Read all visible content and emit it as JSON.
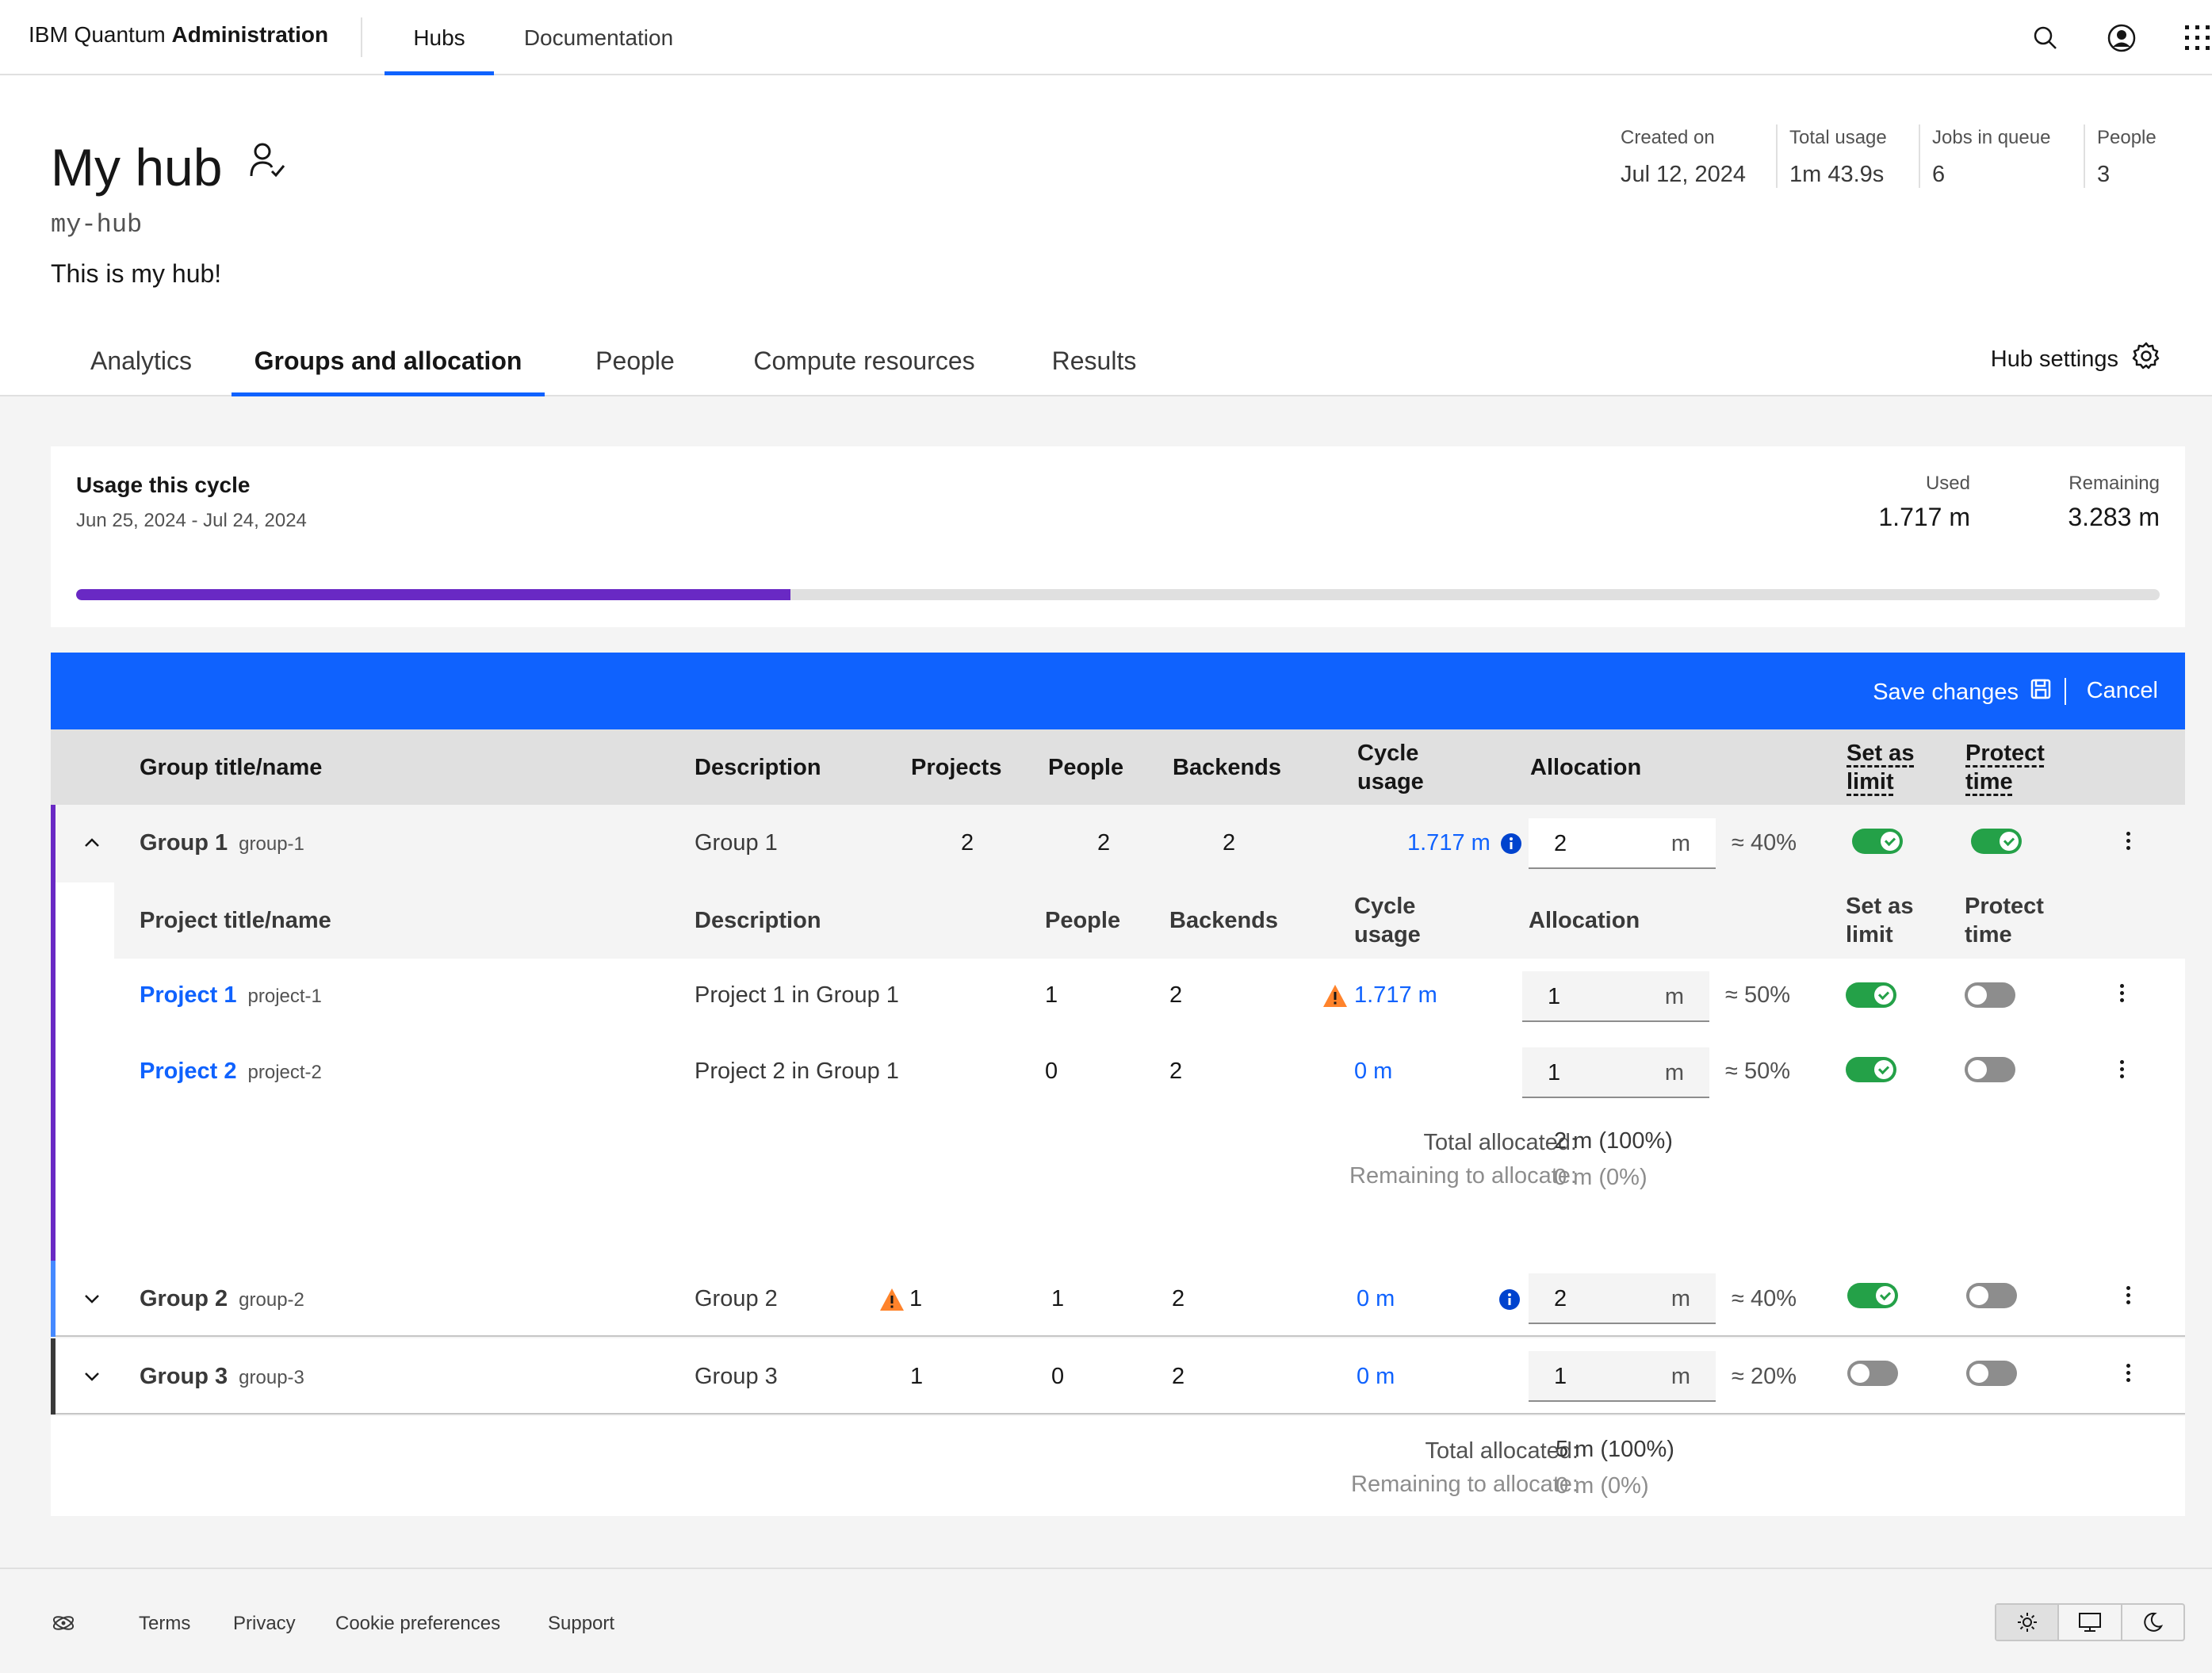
{
  "header": {
    "brand_prefix": "IBM Quantum",
    "brand_bold": "Administration",
    "nav": [
      "Hubs",
      "Documentation"
    ],
    "icons": [
      "search-icon",
      "user-avatar-icon",
      "app-switcher-icon"
    ]
  },
  "hub": {
    "title": "My hub",
    "slug": "my-hub",
    "description": "This is my hub!",
    "meta": [
      {
        "label": "Created on",
        "value": "Jul 12, 2024"
      },
      {
        "label": "Total usage",
        "value": "1m 43.9s"
      },
      {
        "label": "Jobs in queue",
        "value": "6"
      },
      {
        "label": "People",
        "value": "3"
      }
    ],
    "tabs": [
      "Analytics",
      "Groups and allocation",
      "People",
      "Compute resources",
      "Results"
    ],
    "active_tab": "Groups and allocation",
    "settings_label": "Hub settings"
  },
  "usage": {
    "title": "Usage this cycle",
    "dates": "Jun 25, 2024 - Jul 24, 2024",
    "used_label": "Used",
    "used_value": "1.717 m",
    "remaining_label": "Remaining",
    "remaining_value": "3.283 m",
    "progress_fraction": 0.343,
    "bar_color": "#6929c4"
  },
  "actions": {
    "save": "Save changes",
    "cancel": "Cancel"
  },
  "table": {
    "headers": {
      "name": "Group title/name",
      "description": "Description",
      "projects": "Projects",
      "people": "People",
      "backends": "Backends",
      "cycle_usage_1": "Cycle",
      "cycle_usage_2": "usage",
      "allocation": "Allocation",
      "set_limit_1": "Set as",
      "set_limit_2": "limit",
      "protect_1": "Protect",
      "protect_2": "time"
    },
    "project_headers": {
      "name": "Project title/name",
      "description": "Description",
      "people": "People",
      "backends": "Backends",
      "cycle_usage_1": "Cycle",
      "cycle_usage_2": "usage",
      "allocation": "Allocation",
      "set_limit_1": "Set as",
      "set_limit_2": "limit",
      "protect_1": "Protect",
      "protect_2": "time"
    },
    "groups": [
      {
        "title": "Group 1",
        "slug": "group-1",
        "description": "Group 1",
        "projects": "2",
        "people": "2",
        "backends": "2",
        "usage": "1.717 m",
        "allocation": "2",
        "unit": "m",
        "percent": "≈ 40%",
        "set_limit": true,
        "protect": true,
        "color": "#6929c4",
        "projects_list": [
          {
            "title": "Project 1",
            "slug": "project-1",
            "description": "Project 1 in Group 1",
            "people": "1",
            "backends": "2",
            "usage": "1.717 m",
            "warning": true,
            "allocation": "1",
            "unit": "m",
            "percent": "≈ 50%",
            "set_limit": true,
            "protect": false
          },
          {
            "title": "Project 2",
            "slug": "project-2",
            "description": "Project 2 in Group 1",
            "people": "0",
            "backends": "2",
            "usage": "0 m",
            "warning": false,
            "allocation": "1",
            "unit": "m",
            "percent": "≈ 50%",
            "set_limit": true,
            "protect": false
          }
        ],
        "total_label": "Total allocated:",
        "total_value": "2 m (100%)",
        "remaining_label": "Remaining to allocate:",
        "remaining_value": "0 m (0%)"
      },
      {
        "title": "Group 2",
        "slug": "group-2",
        "description": "Group 2",
        "projects": "1",
        "people": "1",
        "backends": "2",
        "usage": "0 m",
        "allocation": "2",
        "unit": "m",
        "percent": "≈ 40%",
        "set_limit": true,
        "protect": false,
        "color": "#4589ff"
      },
      {
        "title": "Group 3",
        "slug": "group-3",
        "description": "Group 3",
        "projects": "1",
        "people": "0",
        "backends": "2",
        "usage": "0 m",
        "allocation": "1",
        "unit": "m",
        "percent": "≈ 20%",
        "set_limit": false,
        "protect": false,
        "color": "#393939"
      }
    ],
    "totals": {
      "total_label": "Total allocated:",
      "total_value": "5 m (100%)",
      "remaining_label": "Remaining to allocate:",
      "remaining_value": "0 m (0%)"
    }
  },
  "footer": {
    "links": [
      "Terms",
      "Privacy",
      "Cookie preferences",
      "Support"
    ],
    "theme_options": [
      "light-theme-icon",
      "system-theme-icon",
      "dark-theme-icon"
    ],
    "selected_theme": "light-theme-icon"
  }
}
